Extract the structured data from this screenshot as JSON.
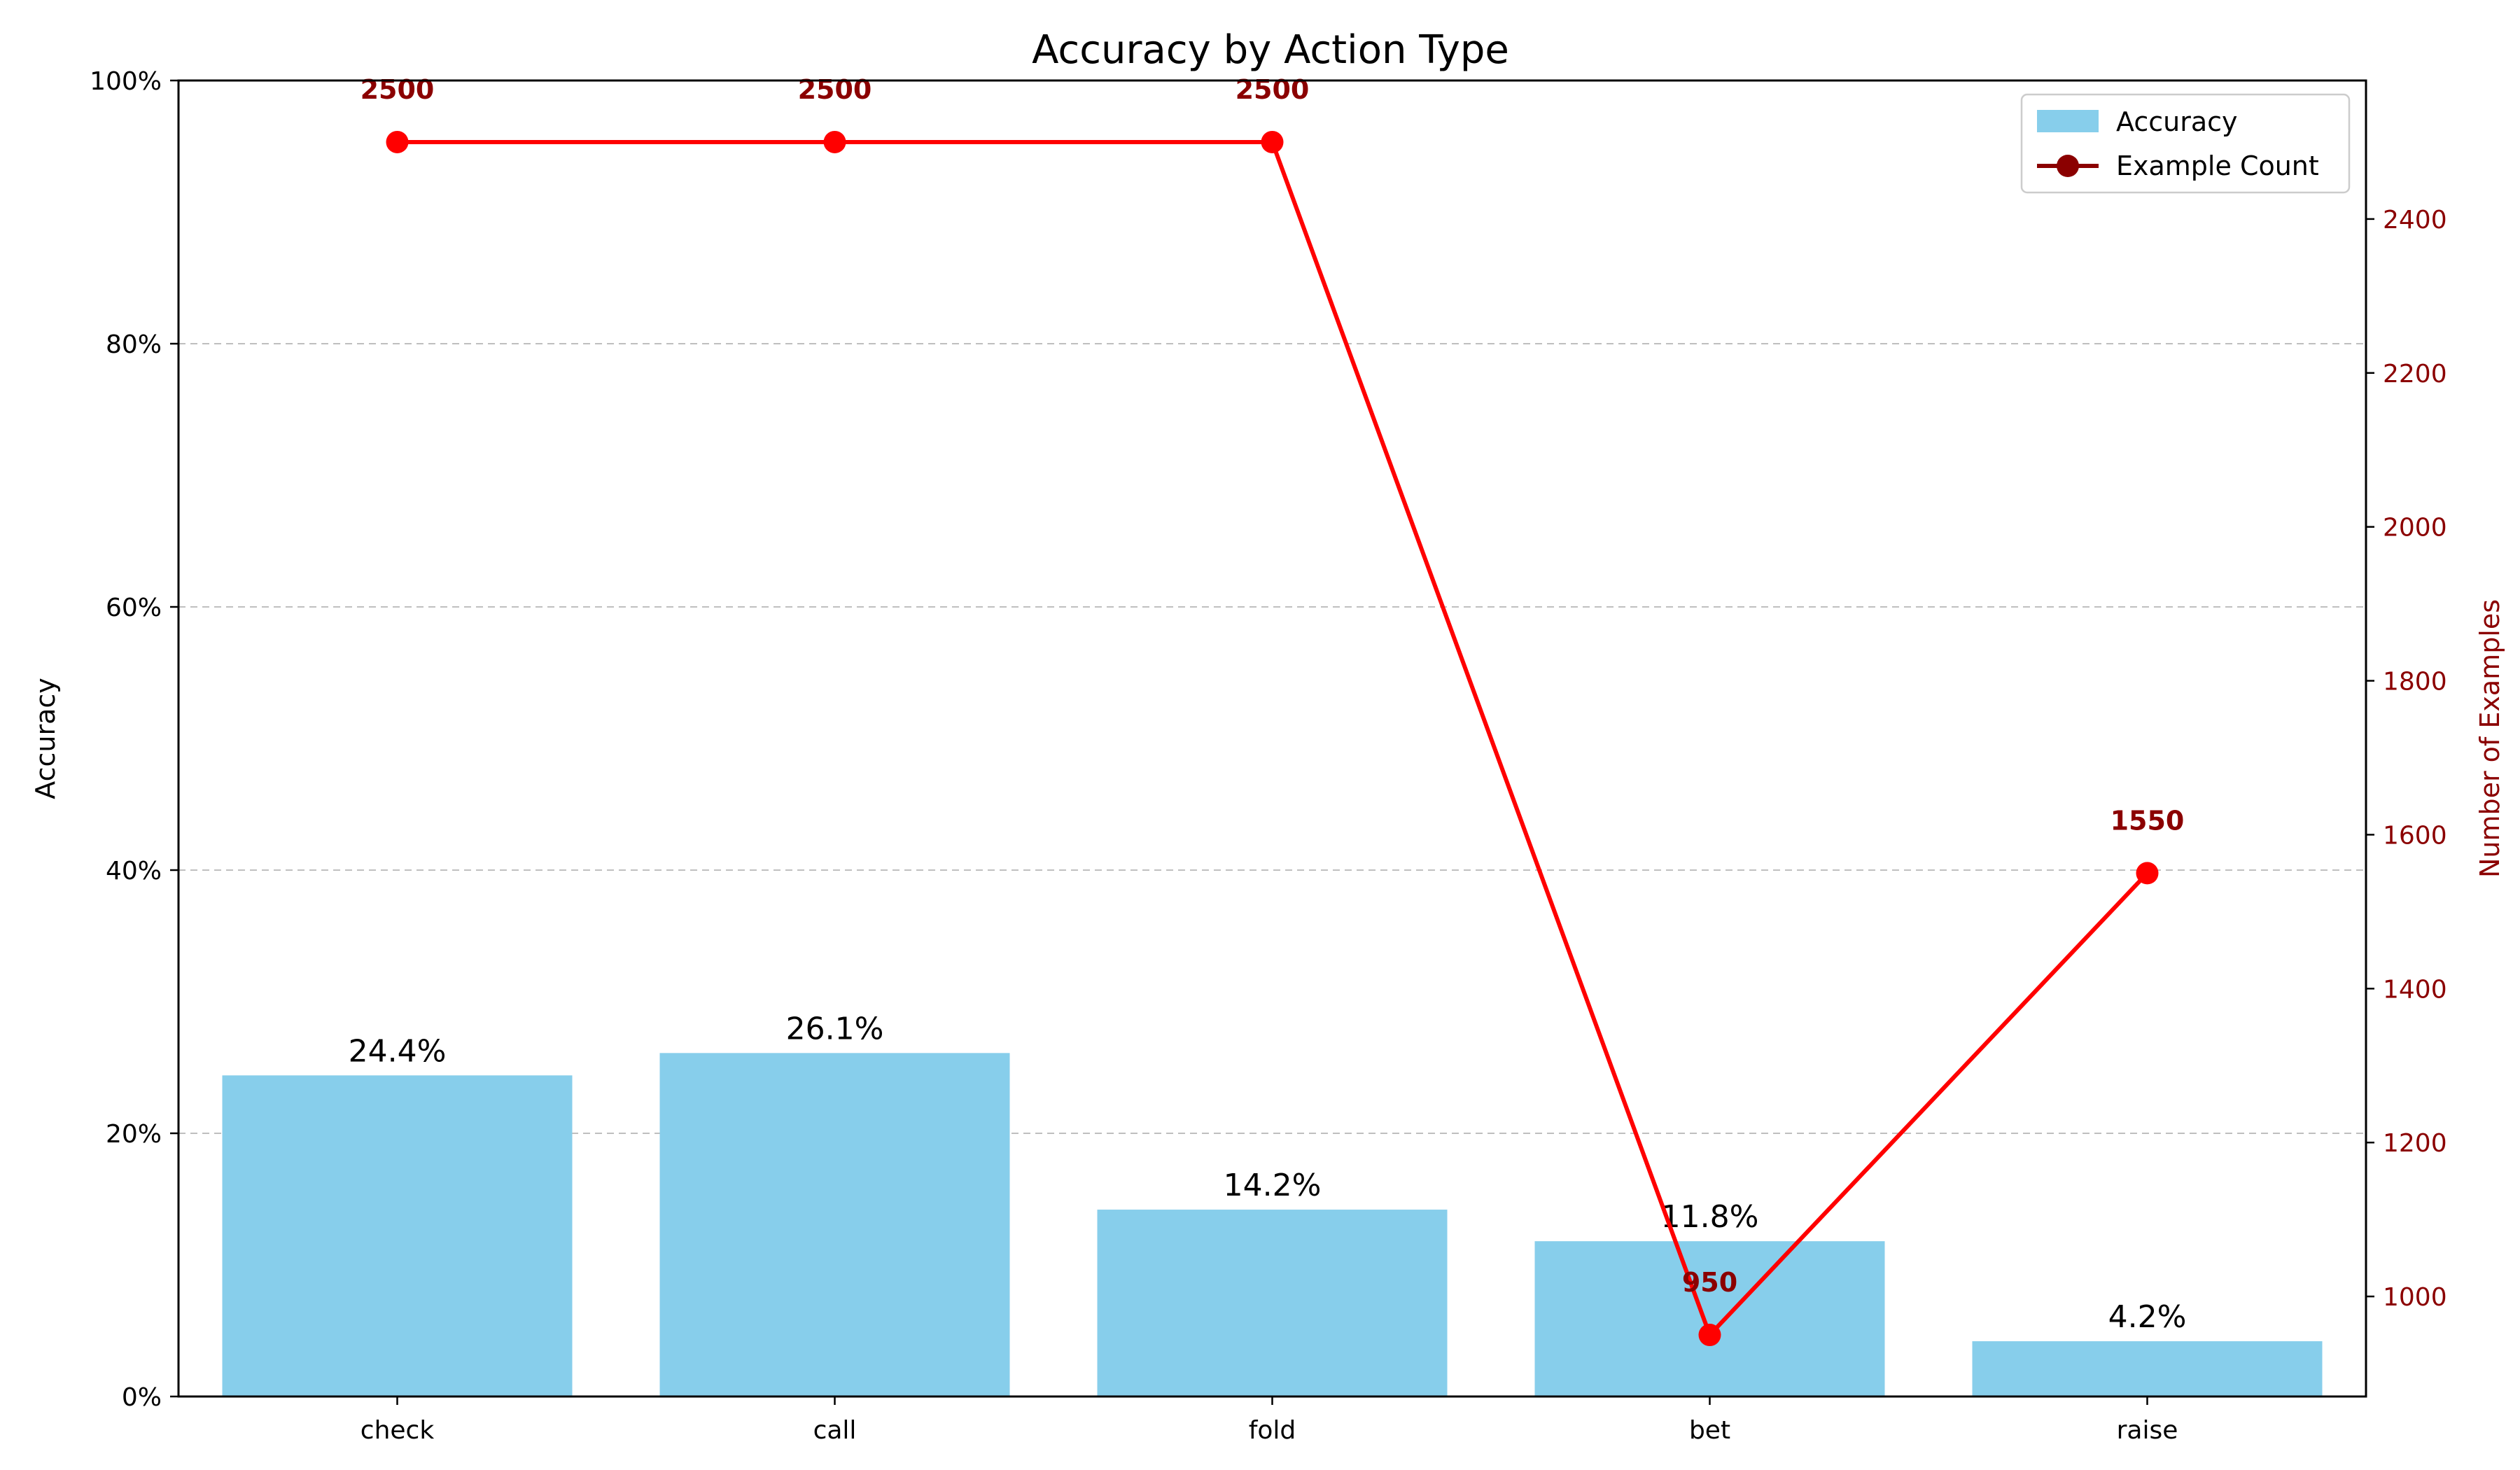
{
  "chart_data": {
    "type": "bar",
    "title": "Accuracy by Action Type",
    "categories": [
      "check",
      "call",
      "fold",
      "bet",
      "raise"
    ],
    "series": [
      {
        "name": "Accuracy",
        "type": "bar",
        "axis": "left",
        "values": [
          0.244,
          0.261,
          0.142,
          0.118,
          0.042
        ],
        "labels": [
          "24.4%",
          "26.1%",
          "14.2%",
          "11.8%",
          "4.2%"
        ],
        "color": "#87ceeb"
      },
      {
        "name": "Example Count",
        "type": "line",
        "axis": "right",
        "values": [
          2500,
          2500,
          2500,
          950,
          1550
        ],
        "labels": [
          "2500",
          "2500",
          "2500",
          "950",
          "1550"
        ],
        "color": "#ff0000",
        "legend_marker_color": "#8b0000",
        "label_color": "#8b0000"
      }
    ],
    "ylabel": "Accuracy",
    "ylabel_right": "Number of Examples",
    "ylim": [
      0,
      1
    ],
    "ylim_right": [
      870,
      2580
    ],
    "yticks": [
      0,
      0.2,
      0.4,
      0.6,
      0.8,
      1.0
    ],
    "ytick_labels": [
      "0%",
      "20%",
      "40%",
      "60%",
      "80%",
      "100%"
    ],
    "yticks_right": [
      1000,
      1200,
      1400,
      1600,
      1800,
      2000,
      2200,
      2400
    ],
    "ytick_labels_right": [
      "1000",
      "1200",
      "1400",
      "1600",
      "1800",
      "2000",
      "2200",
      "2400"
    ],
    "right_axis_color": "#8b0000",
    "grid": "horizontal dashed",
    "legend_position": "top-right"
  }
}
